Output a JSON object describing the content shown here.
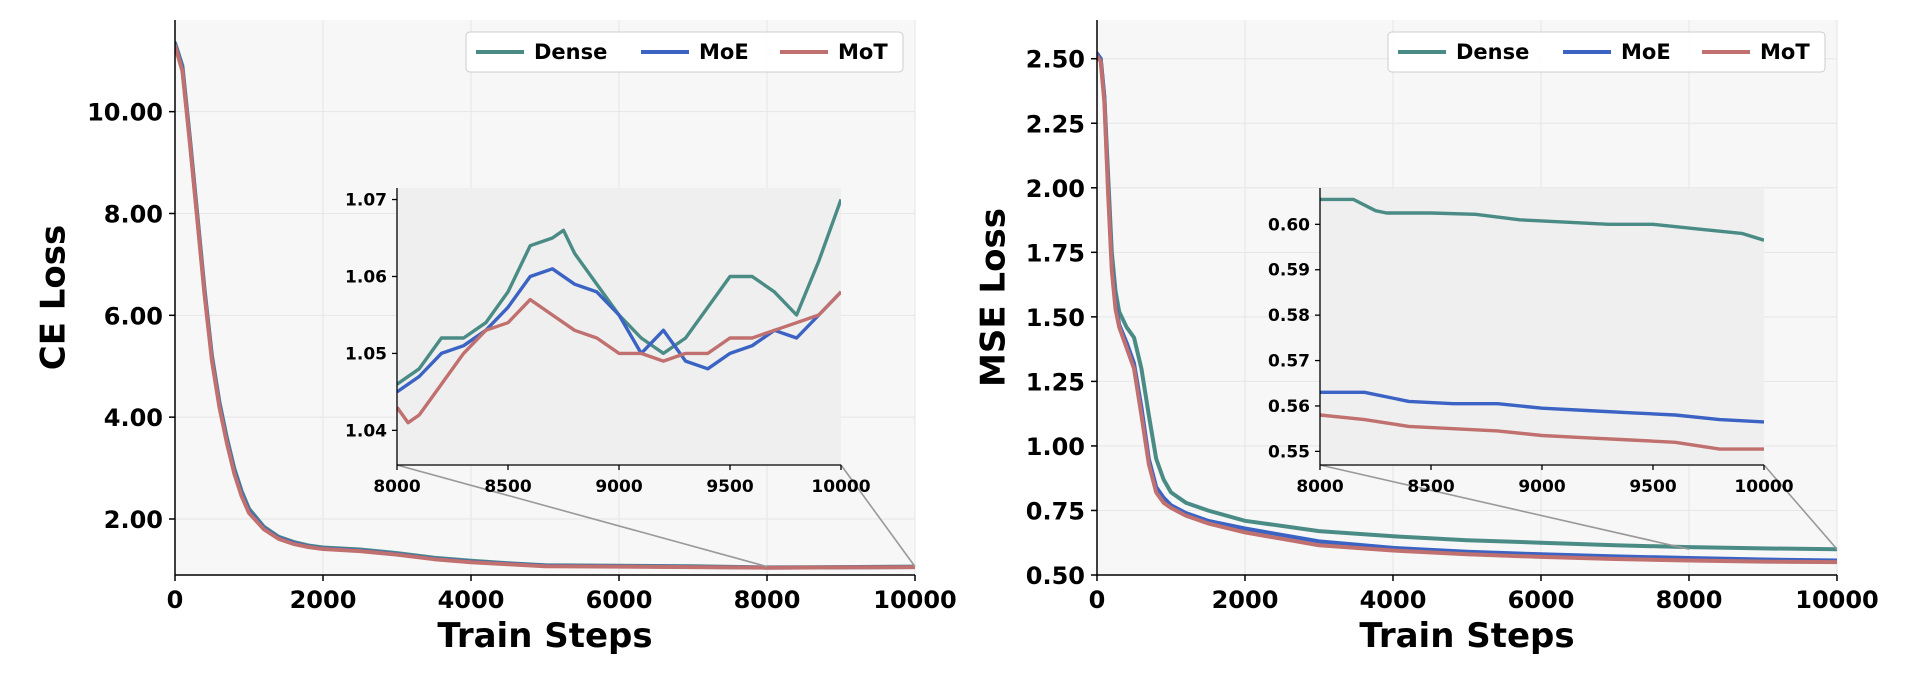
{
  "chart_data": [
    {
      "type": "line",
      "xlabel": "Train Steps",
      "ylabel": "CE Loss",
      "xlim": [
        0,
        10000
      ],
      "ylim": [
        0.9,
        11.8
      ],
      "xticks": [
        0,
        2000,
        4000,
        6000,
        8000,
        10000
      ],
      "yticks": [
        2.0,
        4.0,
        6.0,
        8.0,
        10.0
      ],
      "ytick_labels": [
        "2.00",
        "4.00",
        "6.00",
        "8.00",
        "10.00"
      ],
      "grid": true,
      "legend_position": "top-right",
      "series": [
        {
          "name": "Dense",
          "color": "#4a8c85",
          "x": [
            0,
            100,
            200,
            300,
            400,
            500,
            600,
            700,
            800,
            900,
            1000,
            1200,
            1400,
            1600,
            1800,
            2000,
            2500,
            3000,
            3500,
            4000,
            4500,
            5000,
            6000,
            7000,
            8000,
            9000,
            10000
          ],
          "y": [
            11.35,
            10.9,
            9.5,
            8.0,
            6.5,
            5.2,
            4.3,
            3.6,
            3.0,
            2.55,
            2.2,
            1.85,
            1.65,
            1.55,
            1.48,
            1.44,
            1.4,
            1.33,
            1.24,
            1.18,
            1.13,
            1.09,
            1.08,
            1.07,
            1.05,
            1.055,
            1.065
          ]
        },
        {
          "name": "MoE",
          "color": "#3b63c4",
          "x": [
            0,
            100,
            200,
            300,
            400,
            500,
            600,
            700,
            800,
            900,
            1000,
            1200,
            1400,
            1600,
            1800,
            2000,
            2500,
            3000,
            3500,
            4000,
            4500,
            5000,
            6000,
            7000,
            8000,
            9000,
            10000
          ],
          "y": [
            11.33,
            10.85,
            9.45,
            7.95,
            6.45,
            5.15,
            4.25,
            3.55,
            2.95,
            2.5,
            2.16,
            1.82,
            1.63,
            1.53,
            1.46,
            1.42,
            1.38,
            1.31,
            1.22,
            1.16,
            1.12,
            1.08,
            1.07,
            1.06,
            1.046,
            1.05,
            1.057
          ]
        },
        {
          "name": "MoT",
          "color": "#c0706e",
          "x": [
            0,
            100,
            200,
            300,
            400,
            500,
            600,
            700,
            800,
            900,
            1000,
            1200,
            1400,
            1600,
            1800,
            2000,
            2500,
            3000,
            3500,
            4000,
            4500,
            5000,
            6000,
            7000,
            8000,
            9000,
            10000
          ],
          "y": [
            11.3,
            10.8,
            9.4,
            7.9,
            6.4,
            5.1,
            4.2,
            3.5,
            2.9,
            2.45,
            2.12,
            1.8,
            1.61,
            1.51,
            1.45,
            1.41,
            1.37,
            1.3,
            1.21,
            1.15,
            1.11,
            1.07,
            1.065,
            1.055,
            1.043,
            1.05,
            1.055
          ]
        }
      ],
      "inset": {
        "xlim": [
          8000,
          10000
        ],
        "ylim": [
          1.0355,
          1.0715
        ],
        "xticks": [
          8000,
          8500,
          9000,
          9500,
          10000
        ],
        "yticks": [
          1.04,
          1.05,
          1.06,
          1.07
        ],
        "ytick_labels": [
          "1.04",
          "1.05",
          "1.06",
          "1.07"
        ],
        "series": [
          {
            "name": "Dense",
            "x": [
              8000,
              8100,
              8200,
              8300,
              8400,
              8500,
              8600,
              8700,
              8750,
              8800,
              8900,
              9000,
              9100,
              9200,
              9300,
              9400,
              9500,
              9600,
              9700,
              9800,
              9900,
              10000
            ],
            "y": [
              1.046,
              1.048,
              1.052,
              1.052,
              1.054,
              1.058,
              1.064,
              1.065,
              1.066,
              1.063,
              1.059,
              1.055,
              1.052,
              1.05,
              1.052,
              1.056,
              1.06,
              1.06,
              1.058,
              1.055,
              1.062,
              1.07
            ]
          },
          {
            "name": "MoE",
            "x": [
              8000,
              8100,
              8200,
              8300,
              8400,
              8500,
              8600,
              8700,
              8800,
              8900,
              9000,
              9100,
              9200,
              9300,
              9400,
              9500,
              9600,
              9700,
              9800,
              9900,
              10000
            ],
            "y": [
              1.045,
              1.047,
              1.05,
              1.051,
              1.053,
              1.056,
              1.06,
              1.061,
              1.059,
              1.058,
              1.055,
              1.05,
              1.053,
              1.049,
              1.048,
              1.05,
              1.051,
              1.053,
              1.052,
              1.055,
              1.058
            ]
          },
          {
            "name": "MoT",
            "x": [
              8000,
              8050,
              8100,
              8200,
              8300,
              8400,
              8500,
              8600,
              8700,
              8800,
              8900,
              9000,
              9100,
              9200,
              9300,
              9400,
              9500,
              9600,
              9700,
              9800,
              9900,
              10000
            ],
            "y": [
              1.043,
              1.041,
              1.042,
              1.046,
              1.05,
              1.053,
              1.054,
              1.057,
              1.055,
              1.053,
              1.052,
              1.05,
              1.05,
              1.049,
              1.05,
              1.05,
              1.052,
              1.052,
              1.053,
              1.054,
              1.055,
              1.058
            ]
          }
        ]
      }
    },
    {
      "type": "line",
      "xlabel": "Train Steps",
      "ylabel": "MSE Loss",
      "xlim": [
        0,
        10000
      ],
      "ylim": [
        0.5,
        2.65
      ],
      "xticks": [
        0,
        2000,
        4000,
        6000,
        8000,
        10000
      ],
      "yticks": [
        0.5,
        0.75,
        1.0,
        1.25,
        1.5,
        1.75,
        2.0,
        2.25,
        2.5
      ],
      "ytick_labels": [
        "0.50",
        "0.75",
        "1.00",
        "1.25",
        "1.50",
        "1.75",
        "2.00",
        "2.25",
        "2.50"
      ],
      "grid": true,
      "legend_position": "top-right",
      "series": [
        {
          "name": "Dense",
          "color": "#4a8c85",
          "x": [
            0,
            50,
            100,
            150,
            200,
            250,
            300,
            400,
            500,
            600,
            700,
            800,
            900,
            1000,
            1200,
            1500,
            2000,
            3000,
            4000,
            5000,
            6000,
            7000,
            8000,
            9000,
            10000
          ],
          "y": [
            2.52,
            2.5,
            2.35,
            2.05,
            1.75,
            1.6,
            1.52,
            1.46,
            1.42,
            1.3,
            1.12,
            0.95,
            0.87,
            0.82,
            0.78,
            0.75,
            0.71,
            0.67,
            0.65,
            0.635,
            0.625,
            0.615,
            0.608,
            0.603,
            0.6
          ]
        },
        {
          "name": "MoE",
          "color": "#3b63c4",
          "x": [
            0,
            50,
            100,
            150,
            200,
            250,
            300,
            400,
            500,
            600,
            700,
            800,
            900,
            1000,
            1200,
            1500,
            2000,
            3000,
            4000,
            5000,
            6000,
            7000,
            8000,
            9000,
            10000
          ],
          "y": [
            2.52,
            2.5,
            2.35,
            2.0,
            1.7,
            1.55,
            1.47,
            1.4,
            1.32,
            1.15,
            0.95,
            0.84,
            0.8,
            0.77,
            0.74,
            0.71,
            0.68,
            0.63,
            0.605,
            0.59,
            0.58,
            0.572,
            0.566,
            0.56,
            0.556
          ]
        },
        {
          "name": "MoT",
          "color": "#c0706e",
          "x": [
            0,
            50,
            100,
            150,
            200,
            250,
            300,
            400,
            500,
            600,
            700,
            800,
            900,
            1000,
            1200,
            1500,
            2000,
            3000,
            4000,
            5000,
            6000,
            7000,
            8000,
            9000,
            10000
          ],
          "y": [
            2.51,
            2.49,
            2.33,
            1.98,
            1.68,
            1.53,
            1.46,
            1.38,
            1.3,
            1.12,
            0.93,
            0.82,
            0.78,
            0.76,
            0.73,
            0.7,
            0.665,
            0.615,
            0.595,
            0.58,
            0.57,
            0.562,
            0.556,
            0.552,
            0.55
          ]
        }
      ],
      "inset": {
        "xlim": [
          8000,
          10000
        ],
        "ylim": [
          0.547,
          0.608
        ],
        "xticks": [
          8000,
          8500,
          9000,
          9500,
          10000
        ],
        "yticks": [
          0.55,
          0.56,
          0.57,
          0.58,
          0.59,
          0.6
        ],
        "ytick_labels": [
          "0.55",
          "0.56",
          "0.57",
          "0.58",
          "0.59",
          "0.60"
        ],
        "series": [
          {
            "name": "Dense",
            "x": [
              8000,
              8150,
              8250,
              8300,
              8500,
              8700,
              8900,
              9100,
              9300,
              9500,
              9700,
              9900,
              10000
            ],
            "y": [
              0.6055,
              0.6055,
              0.603,
              0.6025,
              0.6025,
              0.6022,
              0.601,
              0.6005,
              0.6,
              0.6,
              0.599,
              0.598,
              0.5965
            ]
          },
          {
            "name": "MoE",
            "x": [
              8000,
              8200,
              8400,
              8600,
              8800,
              9000,
              9200,
              9400,
              9600,
              9800,
              10000
            ],
            "y": [
              0.563,
              0.563,
              0.561,
              0.5605,
              0.5605,
              0.5595,
              0.559,
              0.5585,
              0.558,
              0.557,
              0.5565
            ]
          },
          {
            "name": "MoT",
            "x": [
              8000,
              8200,
              8400,
              8600,
              8800,
              9000,
              9200,
              9400,
              9600,
              9800,
              10000
            ],
            "y": [
              0.558,
              0.557,
              0.5555,
              0.555,
              0.5545,
              0.5535,
              0.553,
              0.5525,
              0.552,
              0.5505,
              0.5505
            ]
          }
        ]
      }
    }
  ]
}
